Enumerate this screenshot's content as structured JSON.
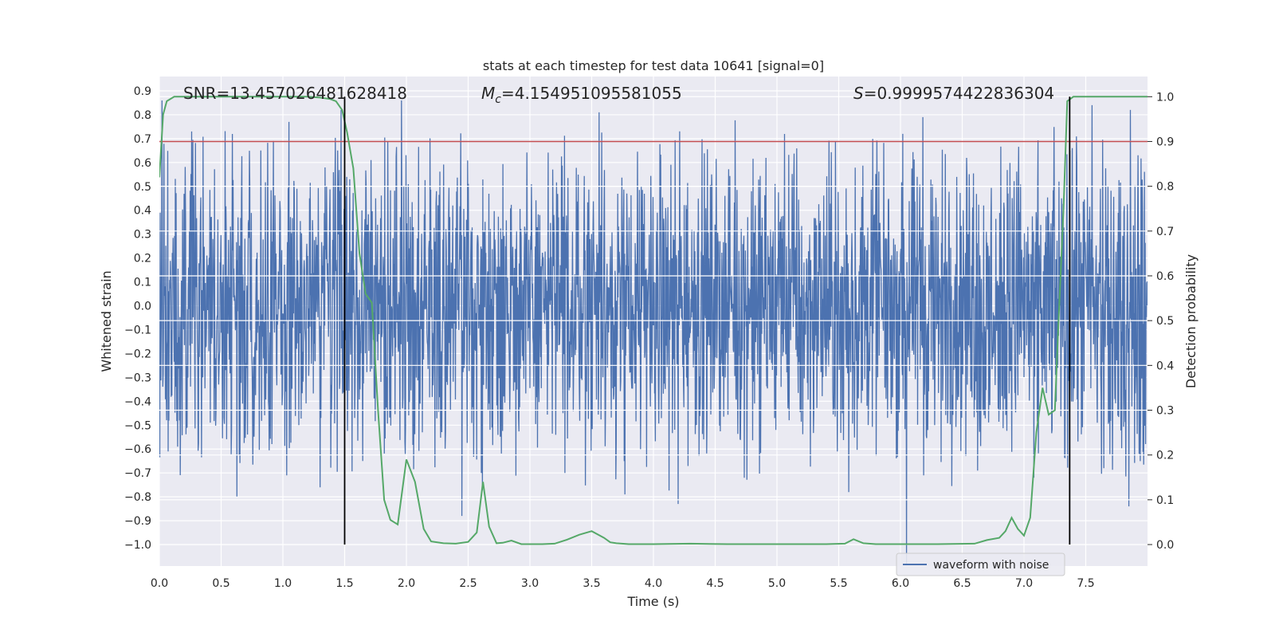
{
  "chart_data": {
    "type": "line",
    "title": "stats at each timestep for test data 10641 [signal=0]",
    "xlabel": "Time (s)",
    "ylabel": "Whitened strain",
    "y2label": "Detection probability",
    "xlim": [
      0.0,
      8.0
    ],
    "ylim": [
      -1.09,
      0.96
    ],
    "y2lim": [
      -0.048,
      1.045
    ],
    "x_ticks": [
      0.0,
      0.5,
      1.0,
      1.5,
      2.0,
      2.5,
      3.0,
      3.5,
      4.0,
      4.5,
      5.0,
      5.5,
      6.0,
      6.5,
      7.0,
      7.5
    ],
    "x_tick_labels": [
      "0.0",
      "0.5",
      "1.0",
      "1.5",
      "2.0",
      "2.5",
      "3.0",
      "3.5",
      "4.0",
      "4.5",
      "5.0",
      "5.5",
      "6.0",
      "6.5",
      "7.0",
      "7.5"
    ],
    "y_ticks": [
      0.9,
      0.8,
      0.7,
      0.6,
      0.5,
      0.4,
      0.3,
      0.2,
      0.1,
      0.0,
      -0.1,
      -0.2,
      -0.3,
      -0.4,
      -0.5,
      -0.6,
      -0.7,
      -0.8,
      -0.9,
      -1.0
    ],
    "y_tick_labels": [
      "0.9",
      "0.8",
      "0.7",
      "0.6",
      "0.5",
      "0.4",
      "0.3",
      "0.2",
      "0.1",
      "0.0",
      "−0.1",
      "−0.2",
      "−0.3",
      "−0.4",
      "−0.5",
      "−0.6",
      "−0.7",
      "−0.8",
      "−0.9",
      "−1.0"
    ],
    "y2_ticks": [
      1.0,
      0.9,
      0.8,
      0.7,
      0.6,
      0.5,
      0.4,
      0.3,
      0.2,
      0.1,
      0.0
    ],
    "y2_tick_labels": [
      "1.0",
      "0.9",
      "0.8",
      "0.7",
      "0.6",
      "0.5",
      "0.4",
      "0.3",
      "0.2",
      "0.1",
      "0.0"
    ],
    "grid": true,
    "legend": {
      "position": "bottom-right",
      "entries": [
        "waveform with noise"
      ]
    },
    "annotations": {
      "snr": "SNR=13.457026481628418",
      "mc_symbol": "M",
      "mc_subscript": "c",
      "mc_value": "=4.154951095581055",
      "s_symbol": "S",
      "s_value": "=0.9999574422836304"
    },
    "waveform": {
      "name": "waveform with noise",
      "color": "#4c72b0",
      "typical_abs_max": 0.32,
      "notable_peaks": [
        {
          "t": 0.02,
          "v": 0.86
        },
        {
          "t": 0.26,
          "v": 0.73
        },
        {
          "t": 1.05,
          "v": 0.77
        },
        {
          "t": 1.47,
          "v": 0.82
        },
        {
          "t": 1.96,
          "v": 0.86
        },
        {
          "t": 3.56,
          "v": 0.81
        },
        {
          "t": 6.02,
          "v": 0.72
        },
        {
          "t": 6.18,
          "v": 0.79
        },
        {
          "t": 7.55,
          "v": 0.84
        },
        {
          "t": 7.86,
          "v": 0.82
        },
        {
          "t": 2.45,
          "v": -0.88
        },
        {
          "t": 6.05,
          "v": -1.08
        },
        {
          "t": 7.85,
          "v": -0.84
        },
        {
          "t": 5.58,
          "v": -0.78
        },
        {
          "t": 3.77,
          "v": -0.79
        },
        {
          "t": 4.2,
          "v": -0.83
        },
        {
          "t": 1.3,
          "v": -0.76
        }
      ]
    },
    "detection_probability": {
      "color": "#55a868",
      "t": [
        0.0,
        0.03,
        0.06,
        0.12,
        0.2,
        0.4,
        0.7,
        1.0,
        1.2,
        1.3,
        1.38,
        1.43,
        1.48,
        1.52,
        1.57,
        1.62,
        1.67,
        1.72,
        1.77,
        1.82,
        1.87,
        1.93,
        2.0,
        2.07,
        2.14,
        2.2,
        2.3,
        2.4,
        2.5,
        2.57,
        2.62,
        2.67,
        2.73,
        2.78,
        2.85,
        2.93,
        3.0,
        3.1,
        3.2,
        3.3,
        3.4,
        3.5,
        3.6,
        3.65,
        3.7,
        3.8,
        4.0,
        4.3,
        4.6,
        5.0,
        5.4,
        5.55,
        5.62,
        5.7,
        5.8,
        6.0,
        6.3,
        6.6,
        6.7,
        6.8,
        6.85,
        6.9,
        6.95,
        7.0,
        7.05,
        7.1,
        7.15,
        7.2,
        7.25,
        7.28,
        7.32,
        7.35,
        7.4,
        7.45,
        7.5,
        7.55,
        8.0
      ],
      "p": [
        0.82,
        0.96,
        0.99,
        1.0,
        1.0,
        1.0,
        1.0,
        1.0,
        1.0,
        0.998,
        0.995,
        0.99,
        0.97,
        0.92,
        0.84,
        0.65,
        0.56,
        0.54,
        0.3,
        0.1,
        0.055,
        0.045,
        0.19,
        0.14,
        0.035,
        0.007,
        0.003,
        0.002,
        0.006,
        0.027,
        0.14,
        0.04,
        0.003,
        0.004,
        0.009,
        0.001,
        0.001,
        0.001,
        0.002,
        0.011,
        0.022,
        0.03,
        0.015,
        0.005,
        0.003,
        0.001,
        0.001,
        0.002,
        0.001,
        0.001,
        0.001,
        0.002,
        0.012,
        0.003,
        0.001,
        0.001,
        0.001,
        0.002,
        0.01,
        0.015,
        0.03,
        0.06,
        0.035,
        0.02,
        0.06,
        0.25,
        0.35,
        0.29,
        0.3,
        0.5,
        0.75,
        0.99,
        1.0,
        1.0,
        1.0,
        1.0,
        1.0
      ]
    },
    "threshold": {
      "value": 0.9,
      "color": "#c44e52"
    },
    "vertical_markers": {
      "x": [
        1.5,
        7.37
      ],
      "color": "#000000"
    }
  }
}
